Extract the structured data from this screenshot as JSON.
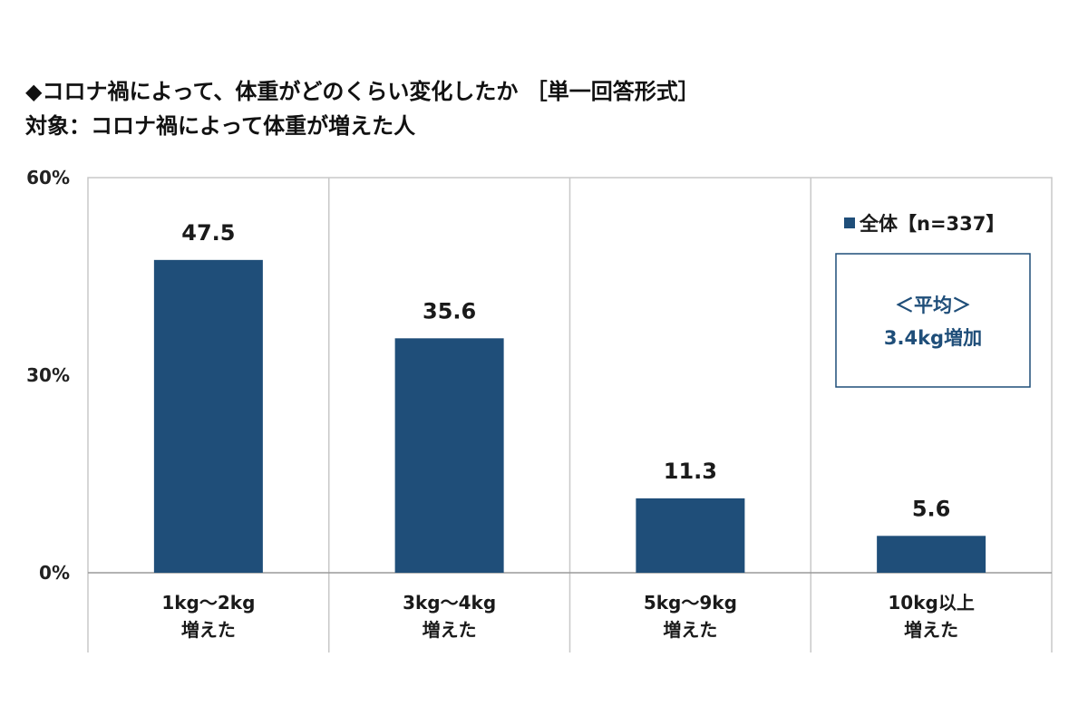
{
  "chart_data": {
    "type": "bar",
    "title": "◆コロナ禍によって、体重がどのくらい変化したか ［単一回答形式］",
    "subtitle": "対象：コロナ禍によって体重が増えた人",
    "categories": [
      [
        "1kg～2kg",
        "増えた"
      ],
      [
        "3kg～4kg",
        "増えた"
      ],
      [
        "5kg～9kg",
        "増えた"
      ],
      [
        "10kg以上",
        "増えた"
      ]
    ],
    "series": [
      {
        "name": "全体【n=337】",
        "values": [
          47.5,
          35.6,
          11.3,
          5.6
        ],
        "color": "#1f4e79"
      }
    ],
    "value_labels": [
      "47.5",
      "35.6",
      "11.3",
      "5.6"
    ],
    "yticks": [
      "0%",
      "30%",
      "60%"
    ],
    "ytick_values": [
      0,
      30,
      60
    ],
    "ylim": [
      0,
      60
    ],
    "grid": "vertical-separators",
    "legend_position": "top-right",
    "annotation": [
      "＜平均＞",
      "3.4kg増加"
    ],
    "colors": {
      "bar": "#1f4e79",
      "grid": "#c8c8c8",
      "annotation_border": "#1f4e79",
      "annotation_text": "#1f4e79"
    }
  }
}
